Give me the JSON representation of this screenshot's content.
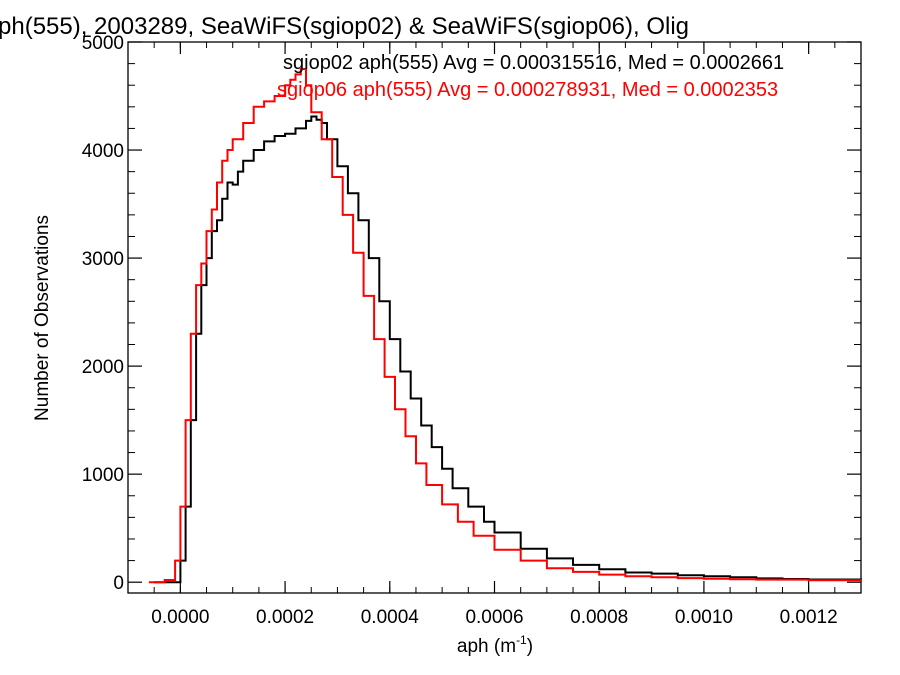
{
  "chart_data": {
    "type": "line",
    "title": "ph(555), 2003289, SeaWiFS(sgiop02) & SeaWiFS(sgiop06), Olig",
    "xlabel_main": "aph (m",
    "xlabel_sup": "-1",
    "xlabel_end": ")",
    "ylabel": "Number of Observations",
    "xlim": [
      -0.0001,
      0.0013
    ],
    "ylim": [
      -100,
      5000
    ],
    "x_ticks": [
      {
        "value": 0.0,
        "label": "0.0000"
      },
      {
        "value": 0.0002,
        "label": "0.0002"
      },
      {
        "value": 0.0004,
        "label": "0.0004"
      },
      {
        "value": 0.0006,
        "label": "0.0006"
      },
      {
        "value": 0.0008,
        "label": "0.0008"
      },
      {
        "value": 0.001,
        "label": "0.0010"
      },
      {
        "value": 0.0012,
        "label": "0.0012"
      }
    ],
    "y_ticks": [
      {
        "value": 0,
        "label": "0"
      },
      {
        "value": 1000,
        "label": "1000"
      },
      {
        "value": 2000,
        "label": "2000"
      },
      {
        "value": 3000,
        "label": "3000"
      },
      {
        "value": 4000,
        "label": "4000"
      },
      {
        "value": 5000,
        "label": "5000"
      }
    ],
    "legend": [
      {
        "text": "sgiop02 aph(555) Avg = 0.000315516, Med = 0.0002661",
        "color": "#000000"
      },
      {
        "text": "sgiop06 aph(555) Avg = 0.000278931, Med = 0.0002353",
        "color": "#ff0000"
      }
    ],
    "series": [
      {
        "color": "#000000",
        "points": [
          [
            -5e-05,
            0
          ],
          [
            -2e-05,
            0
          ],
          [
            0.0,
            200
          ],
          [
            1e-05,
            700
          ],
          [
            2e-05,
            1500
          ],
          [
            3e-05,
            2300
          ],
          [
            4e-05,
            2750
          ],
          [
            5e-05,
            3000
          ],
          [
            6e-05,
            3250
          ],
          [
            7e-05,
            3350
          ],
          [
            8e-05,
            3550
          ],
          [
            9e-05,
            3700
          ],
          [
            0.0001,
            3680
          ],
          [
            0.00011,
            3800
          ],
          [
            0.00012,
            3900
          ],
          [
            0.00014,
            4000
          ],
          [
            0.00016,
            4080
          ],
          [
            0.00018,
            4130
          ],
          [
            0.0002,
            4150
          ],
          [
            0.00022,
            4200
          ],
          [
            0.00024,
            4270
          ],
          [
            0.00025,
            4310
          ],
          [
            0.00026,
            4280
          ],
          [
            0.00027,
            4250
          ],
          [
            0.00028,
            4100
          ],
          [
            0.0003,
            3850
          ],
          [
            0.00032,
            3600
          ],
          [
            0.00034,
            3350
          ],
          [
            0.00036,
            3000
          ],
          [
            0.00038,
            2600
          ],
          [
            0.0004,
            2250
          ],
          [
            0.00042,
            1950
          ],
          [
            0.00044,
            1700
          ],
          [
            0.00046,
            1450
          ],
          [
            0.00048,
            1250
          ],
          [
            0.0005,
            1050
          ],
          [
            0.00052,
            870
          ],
          [
            0.00055,
            700
          ],
          [
            0.00058,
            560
          ],
          [
            0.0006,
            460
          ],
          [
            0.00065,
            310
          ],
          [
            0.0007,
            220
          ],
          [
            0.00075,
            160
          ],
          [
            0.0008,
            120
          ],
          [
            0.00085,
            90
          ],
          [
            0.0009,
            80
          ],
          [
            0.00095,
            65
          ],
          [
            0.001,
            55
          ],
          [
            0.00105,
            45
          ],
          [
            0.0011,
            35
          ],
          [
            0.00115,
            30
          ],
          [
            0.0012,
            25
          ],
          [
            0.0013,
            20
          ]
        ]
      },
      {
        "color": "#ff0000",
        "points": [
          [
            -6e-05,
            0
          ],
          [
            -3e-05,
            20
          ],
          [
            -1e-05,
            200
          ],
          [
            0.0,
            700
          ],
          [
            1e-05,
            1500
          ],
          [
            2e-05,
            2300
          ],
          [
            3e-05,
            2750
          ],
          [
            4e-05,
            2950
          ],
          [
            5e-05,
            3250
          ],
          [
            6e-05,
            3450
          ],
          [
            7e-05,
            3700
          ],
          [
            8e-05,
            3900
          ],
          [
            9e-05,
            4000
          ],
          [
            0.0001,
            4100
          ],
          [
            0.00012,
            4250
          ],
          [
            0.00014,
            4400
          ],
          [
            0.00016,
            4450
          ],
          [
            0.00018,
            4500
          ],
          [
            0.0002,
            4600
          ],
          [
            0.00021,
            4650
          ],
          [
            0.00022,
            4700
          ],
          [
            0.00023,
            4750
          ],
          [
            0.00024,
            4600
          ],
          [
            0.00025,
            4350
          ],
          [
            0.00027,
            4100
          ],
          [
            0.00029,
            3750
          ],
          [
            0.00031,
            3400
          ],
          [
            0.00033,
            3050
          ],
          [
            0.00035,
            2650
          ],
          [
            0.00037,
            2250
          ],
          [
            0.00039,
            1900
          ],
          [
            0.00041,
            1600
          ],
          [
            0.00043,
            1350
          ],
          [
            0.00045,
            1100
          ],
          [
            0.00047,
            900
          ],
          [
            0.0005,
            720
          ],
          [
            0.00053,
            560
          ],
          [
            0.00056,
            430
          ],
          [
            0.0006,
            300
          ],
          [
            0.00065,
            200
          ],
          [
            0.0007,
            130
          ],
          [
            0.00075,
            95
          ],
          [
            0.0008,
            70
          ],
          [
            0.00085,
            55
          ],
          [
            0.0009,
            45
          ],
          [
            0.00095,
            38
          ],
          [
            0.001,
            32
          ],
          [
            0.00105,
            28
          ],
          [
            0.0011,
            24
          ],
          [
            0.0012,
            18
          ],
          [
            0.0013,
            15
          ]
        ]
      }
    ]
  }
}
